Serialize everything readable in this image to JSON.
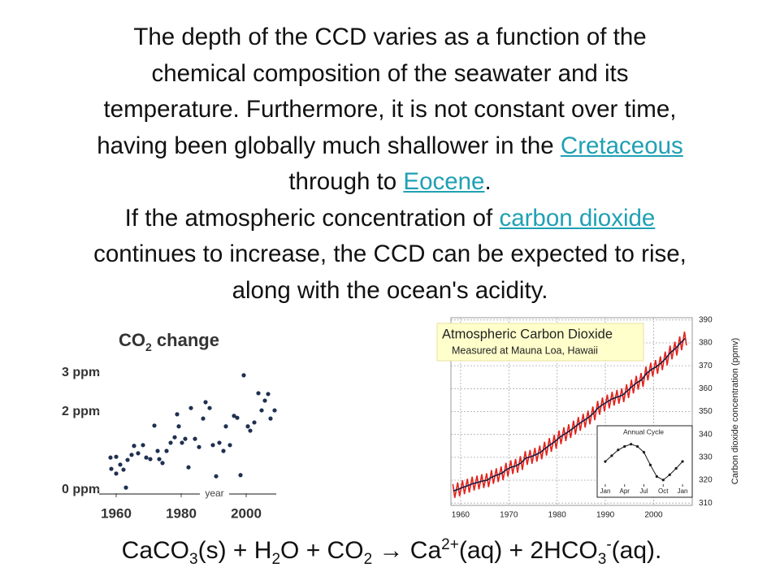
{
  "text": {
    "lines": [
      [
        {
          "text": "The depth of the CCD varies as a function of the"
        }
      ],
      [
        {
          "text": "chemical composition of the seawater and its"
        }
      ],
      [
        {
          "text": "temperature. Furthermore, it is not constant over time,"
        }
      ],
      [
        {
          "text": "having been globally much shallower in the "
        },
        {
          "link": "Cretaceous"
        }
      ],
      [
        {
          "text": "through to "
        },
        {
          "link": "Eocene"
        },
        {
          "text": "."
        }
      ],
      [
        {
          "text": "If the atmospheric concentration of "
        },
        {
          "link": "carbon dioxide"
        }
      ],
      [
        {
          "text": "continues to increase, the CCD can be expected to rise,"
        }
      ],
      [
        {
          "text": "along with the ocean's acidity."
        }
      ]
    ]
  },
  "equation": [
    {
      "text": "CaCO"
    },
    {
      "sub": "3"
    },
    {
      "text": "(s) + H"
    },
    {
      "sub": "2"
    },
    {
      "text": "O + CO"
    },
    {
      "sub": "2"
    },
    {
      "text": " → Ca"
    },
    {
      "sup": "2+"
    },
    {
      "text": "(aq) + 2HCO"
    },
    {
      "sub": "3"
    },
    {
      "sup": "-"
    },
    {
      "text": "(aq)."
    }
  ],
  "chart_data": [
    {
      "type": "scatter",
      "title": [
        {
          "text": "CO"
        },
        {
          "sub": "2"
        },
        {
          "text": " change"
        }
      ],
      "x_label": "year",
      "color": "#1f3050",
      "x": [
        1958.25,
        1958.5,
        1960,
        1960,
        1961.25,
        1962.25,
        1963,
        1963.5,
        1964.75,
        1965.5,
        1966.75,
        1968.25,
        1969.25,
        1970.5,
        1971.75,
        1972.75,
        1973.25,
        1974.25,
        1975.5,
        1976.75,
        1978,
        1978.75,
        1979.25,
        1980.25,
        1981.25,
        1982.25,
        1983,
        1984.25,
        1985.5,
        1986.75,
        1987.5,
        1988.75,
        1989.75,
        1990.75,
        1991.75,
        1993,
        1993.75,
        1995,
        1996.25,
        1997.25,
        1998.25,
        1999.25,
        2000.5,
        2001.25,
        2002.5,
        2003.75,
        2004.75,
        2005.75,
        2006.75,
        2007.5,
        2008.75
      ],
      "values": [
        0.83,
        0.54,
        0.42,
        0.85,
        0.65,
        0.52,
        0.06,
        0.77,
        0.9,
        1.13,
        0.94,
        1.15,
        0.83,
        0.79,
        1.65,
        1.0,
        0.79,
        0.69,
        1.0,
        1.21,
        1.35,
        1.94,
        1.63,
        1.21,
        1.31,
        0.58,
        2.1,
        1.31,
        1.1,
        1.83,
        2.25,
        2.1,
        1.15,
        0.35,
        1.21,
        1.0,
        1.63,
        1.15,
        1.9,
        1.85,
        0.38,
        2.94,
        1.63,
        1.52,
        1.73,
        2.48,
        2.04,
        2.29,
        2.46,
        1.83,
        2.04
      ],
      "xlim": [
        1956,
        2010
      ],
      "ylim": [
        -0.2,
        3.3
      ],
      "xticks": [
        1960,
        1980,
        2000
      ],
      "yticks": [
        {
          "value": 3,
          "label": "3 ppm"
        },
        {
          "value": 2,
          "label": "2 ppm"
        },
        {
          "value": 0,
          "label": "0 ppm"
        }
      ]
    },
    {
      "type": "line",
      "title": "Atmospheric Carbon Dioxide",
      "subtitle": "Measured at Mauna Loa, Hawaii",
      "y_label": "Carbon dioxide concentration (ppmv)",
      "grid": true,
      "y_axis_side": "right",
      "xlim": [
        1958,
        2008
      ],
      "ylim": [
        309,
        391
      ],
      "xticks": [
        1960,
        1970,
        1980,
        1990,
        2000
      ],
      "yticks": [
        310,
        320,
        330,
        340,
        350,
        360,
        370,
        380,
        390
      ],
      "series": [
        {
          "color": "#e3231c",
          "x": [
            1958.4,
            1958.8,
            1959.4,
            1959.8,
            1960.4,
            1960.8,
            1961.4,
            1961.8,
            1962.4,
            1962.8,
            1963.4,
            1963.8,
            1964.4,
            1964.8,
            1965.4,
            1965.8,
            1966.4,
            1966.8,
            1967.4,
            1967.8,
            1968.4,
            1968.8,
            1969.4,
            1969.8,
            1970.4,
            1970.8,
            1971.4,
            1971.8,
            1972.4,
            1972.8,
            1973.4,
            1973.8,
            1974.4,
            1974.8,
            1975.4,
            1975.8,
            1976.4,
            1976.8,
            1977.4,
            1977.8,
            1978.4,
            1978.8,
            1979.4,
            1979.8,
            1980.4,
            1980.8,
            1981.4,
            1981.8,
            1982.4,
            1982.8,
            1983.4,
            1983.8,
            1984.4,
            1984.8,
            1985.4,
            1985.8,
            1986.4,
            1986.8,
            1987.4,
            1987.8,
            1988.4,
            1988.8,
            1989.4,
            1989.8,
            1990.4,
            1990.8,
            1991.4,
            1991.8,
            1992.4,
            1992.8,
            1993.4,
            1993.8,
            1994.4,
            1994.8,
            1995.4,
            1995.8,
            1996.4,
            1996.8,
            1997.4,
            1997.8,
            1998.4,
            1998.8,
            1999.4,
            1999.8,
            2000.4,
            2000.8,
            2001.4,
            2001.8,
            2002.4,
            2002.8,
            2003.4,
            2003.8,
            2004.4,
            2004.8,
            2005.4,
            2005.8,
            2006.4,
            2006.8
          ],
          "values": [
            318.3,
            312.3,
            319.0,
            313.0,
            319.9,
            313.9,
            320.6,
            314.6,
            321.5,
            315.5,
            322.0,
            316.0,
            322.6,
            316.6,
            323.0,
            317.0,
            324.4,
            318.4,
            325.2,
            319.2,
            326.0,
            320.0,
            327.6,
            321.6,
            328.7,
            322.7,
            329.3,
            323.3,
            330.5,
            324.5,
            332.7,
            326.7,
            333.2,
            327.2,
            334.1,
            328.1,
            335.1,
            329.1,
            336.8,
            330.8,
            338.4,
            332.4,
            339.8,
            333.8,
            341.7,
            335.7,
            343.1,
            337.1,
            344.4,
            338.4,
            346.0,
            340.0,
            347.6,
            341.6,
            349.0,
            343.0,
            350.4,
            344.4,
            352.2,
            346.2,
            354.6,
            348.6,
            356.1,
            350.1,
            357.4,
            351.4,
            358.6,
            352.6,
            359.4,
            353.4,
            360.1,
            354.1,
            361.9,
            355.9,
            363.9,
            357.9,
            365.6,
            359.6,
            366.8,
            360.8,
            369.6,
            363.6,
            371.3,
            365.3,
            372.5,
            366.5,
            374.1,
            368.1,
            376.2,
            370.2,
            378.8,
            372.8,
            380.5,
            374.5,
            382.8,
            376.8,
            384.9,
            378.9
          ]
        },
        {
          "color": "#1a1a40",
          "x": [
            1958.5,
            1959.5,
            1960.5,
            1961.5,
            1962.5,
            1963.5,
            1964.5,
            1965.5,
            1966.5,
            1967.5,
            1968.5,
            1969.5,
            1970.5,
            1971.5,
            1972.5,
            1973.5,
            1974.5,
            1975.5,
            1976.5,
            1977.5,
            1978.5,
            1979.5,
            1980.5,
            1981.5,
            1982.5,
            1983.5,
            1984.5,
            1985.5,
            1986.5,
            1987.5,
            1988.5,
            1989.5,
            1990.5,
            1991.5,
            1992.5,
            1993.5,
            1994.5,
            1995.5,
            1996.5,
            1997.5,
            1998.5,
            1999.5,
            2000.5,
            2001.5,
            2002.5,
            2003.5,
            2004.5,
            2005.5,
            2006.5
          ],
          "values": [
            315.3,
            316.0,
            316.9,
            317.6,
            318.5,
            319.0,
            319.6,
            320.0,
            321.4,
            322.2,
            323.0,
            324.6,
            325.7,
            326.3,
            327.5,
            329.7,
            330.2,
            331.1,
            332.1,
            333.8,
            335.4,
            336.8,
            338.7,
            340.1,
            341.4,
            343.0,
            344.6,
            346.0,
            347.4,
            349.2,
            351.6,
            353.1,
            354.4,
            355.6,
            356.4,
            357.1,
            358.9,
            360.9,
            362.6,
            363.8,
            366.6,
            368.3,
            369.5,
            371.1,
            373.2,
            375.8,
            377.5,
            379.8,
            381.9
          ]
        }
      ]
    },
    {
      "type": "line",
      "title": "Annual Cycle",
      "markers": true,
      "color": "#1a1a1a",
      "x": [
        0,
        1,
        2,
        3,
        4,
        5,
        6,
        7,
        8,
        9,
        10,
        11,
        12
      ],
      "values": [
        0,
        1.0,
        2.0,
        2.6,
        3.0,
        2.6,
        1.6,
        -0.6,
        -2.6,
        -3.2,
        -2.3,
        -1.2,
        0
      ],
      "xlim": [
        -0.5,
        12.5
      ],
      "ylim": [
        -4.5,
        4.5
      ],
      "xticks": [
        {
          "value": 0,
          "label": "Jan"
        },
        {
          "value": 3,
          "label": "Apr"
        },
        {
          "value": 6,
          "label": "Jul"
        },
        {
          "value": 9,
          "label": "Oct"
        },
        {
          "value": 12,
          "label": "Jan"
        }
      ]
    }
  ]
}
